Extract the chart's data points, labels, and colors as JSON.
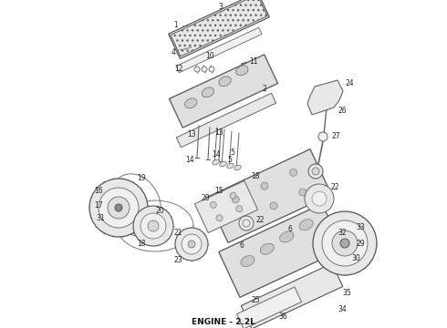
{
  "title": "ENGINE - 2.2L",
  "title_fontsize": 6.5,
  "title_fontweight": "bold",
  "background_color": "#ffffff",
  "fig_width": 4.9,
  "fig_height": 3.6,
  "dpi": 100,
  "line_color": "#555555",
  "label_color": "#222222",
  "label_fontsize": 5.5,
  "border_color": "#888888"
}
